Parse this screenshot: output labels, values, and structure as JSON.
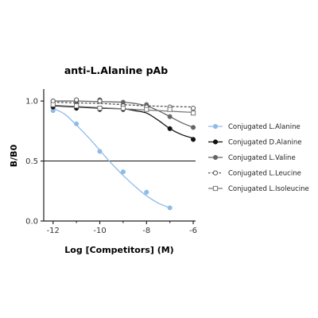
{
  "chart_data": {
    "type": "line",
    "title": "anti-L.Alanine pAb",
    "xlabel": "Log [Competitors] (M)",
    "ylabel": "B/B0",
    "xlim": [
      -12.4,
      -5.9
    ],
    "ylim": [
      0,
      1.1
    ],
    "x_ticks": [
      -12,
      -10,
      -8,
      -6
    ],
    "x_tick_labels": [
      "-12",
      "-10",
      "-8",
      "-6"
    ],
    "y_ticks": [
      0,
      0.5,
      1.0
    ],
    "y_tick_labels": [
      "0.0",
      "0.5",
      "1.0"
    ],
    "reference_line": {
      "y": 0.5
    },
    "grid": false,
    "legend_position": "right",
    "series": [
      {
        "name": "Conjugated L.Alanine",
        "color": "#8fbbe8",
        "marker": "filled-circle",
        "line_style": "solid",
        "x": [
          -12,
          -11,
          -10,
          -9,
          -8,
          -7
        ],
        "y": [
          0.92,
          0.81,
          0.58,
          0.41,
          0.24,
          0.11
        ],
        "curve": [
          [
            -12,
            0.94
          ],
          [
            -11.5,
            0.89
          ],
          [
            -11,
            0.8
          ],
          [
            -10.5,
            0.7
          ],
          [
            -10,
            0.59
          ],
          [
            -9.5,
            0.48
          ],
          [
            -9,
            0.38
          ],
          [
            -8.5,
            0.29
          ],
          [
            -8,
            0.21
          ],
          [
            -7.5,
            0.15
          ],
          [
            -7,
            0.11
          ]
        ]
      },
      {
        "name": "Conjugated D.Alanine",
        "color": "#111111",
        "marker": "filled-circle",
        "line_style": "solid",
        "x": [
          -12,
          -11,
          -10,
          -9,
          -8,
          -7,
          -6
        ],
        "y": [
          0.95,
          0.94,
          0.93,
          0.93,
          0.93,
          0.77,
          0.68
        ],
        "curve": [
          [
            -12,
            0.96
          ],
          [
            -11,
            0.95
          ],
          [
            -10,
            0.94
          ],
          [
            -9,
            0.935
          ],
          [
            -8.5,
            0.92
          ],
          [
            -8,
            0.9
          ],
          [
            -7.5,
            0.84
          ],
          [
            -7,
            0.77
          ],
          [
            -6.5,
            0.72
          ],
          [
            -6,
            0.69
          ]
        ]
      },
      {
        "name": "Conjugated L.Valine",
        "color": "#666666",
        "marker": "filled-circle",
        "line_style": "solid",
        "x": [
          -12,
          -11,
          -10,
          -9,
          -8,
          -7,
          -6
        ],
        "y": [
          1.0,
          1.0,
          1.01,
          0.99,
          0.97,
          0.87,
          0.78
        ],
        "curve": [
          [
            -12,
            1.0
          ],
          [
            -11,
            1.0
          ],
          [
            -10,
            0.995
          ],
          [
            -9,
            0.99
          ],
          [
            -8.5,
            0.98
          ],
          [
            -8,
            0.96
          ],
          [
            -7.5,
            0.92
          ],
          [
            -7,
            0.87
          ],
          [
            -6.5,
            0.82
          ],
          [
            -6,
            0.78
          ]
        ]
      },
      {
        "name": "Conjugated L.Leucine",
        "color": "#555555",
        "marker": "open-circle",
        "line_style": "dashed",
        "x": [
          -12,
          -11,
          -10,
          -9,
          -8,
          -7,
          -6
        ],
        "y": [
          1.0,
          1.01,
          1.0,
          0.96,
          0.95,
          0.95,
          0.94
        ],
        "curve": [
          [
            -12,
            0.99
          ],
          [
            -11,
            0.985
          ],
          [
            -10,
            0.98
          ],
          [
            -9,
            0.97
          ],
          [
            -8,
            0.96
          ],
          [
            -7,
            0.955
          ],
          [
            -6,
            0.95
          ]
        ]
      },
      {
        "name": "Conjugated L.Isoleucine",
        "color": "#777777",
        "marker": "open-square",
        "line_style": "solid",
        "x": [
          -12,
          -11,
          -10,
          -9,
          -8,
          -7,
          -6
        ],
        "y": [
          0.97,
          0.96,
          0.94,
          0.94,
          0.93,
          0.93,
          0.9
        ],
        "curve": [
          [
            -12,
            0.965
          ],
          [
            -11,
            0.955
          ],
          [
            -10,
            0.945
          ],
          [
            -9,
            0.935
          ],
          [
            -8,
            0.925
          ],
          [
            -7,
            0.915
          ],
          [
            -6,
            0.905
          ]
        ]
      }
    ]
  }
}
